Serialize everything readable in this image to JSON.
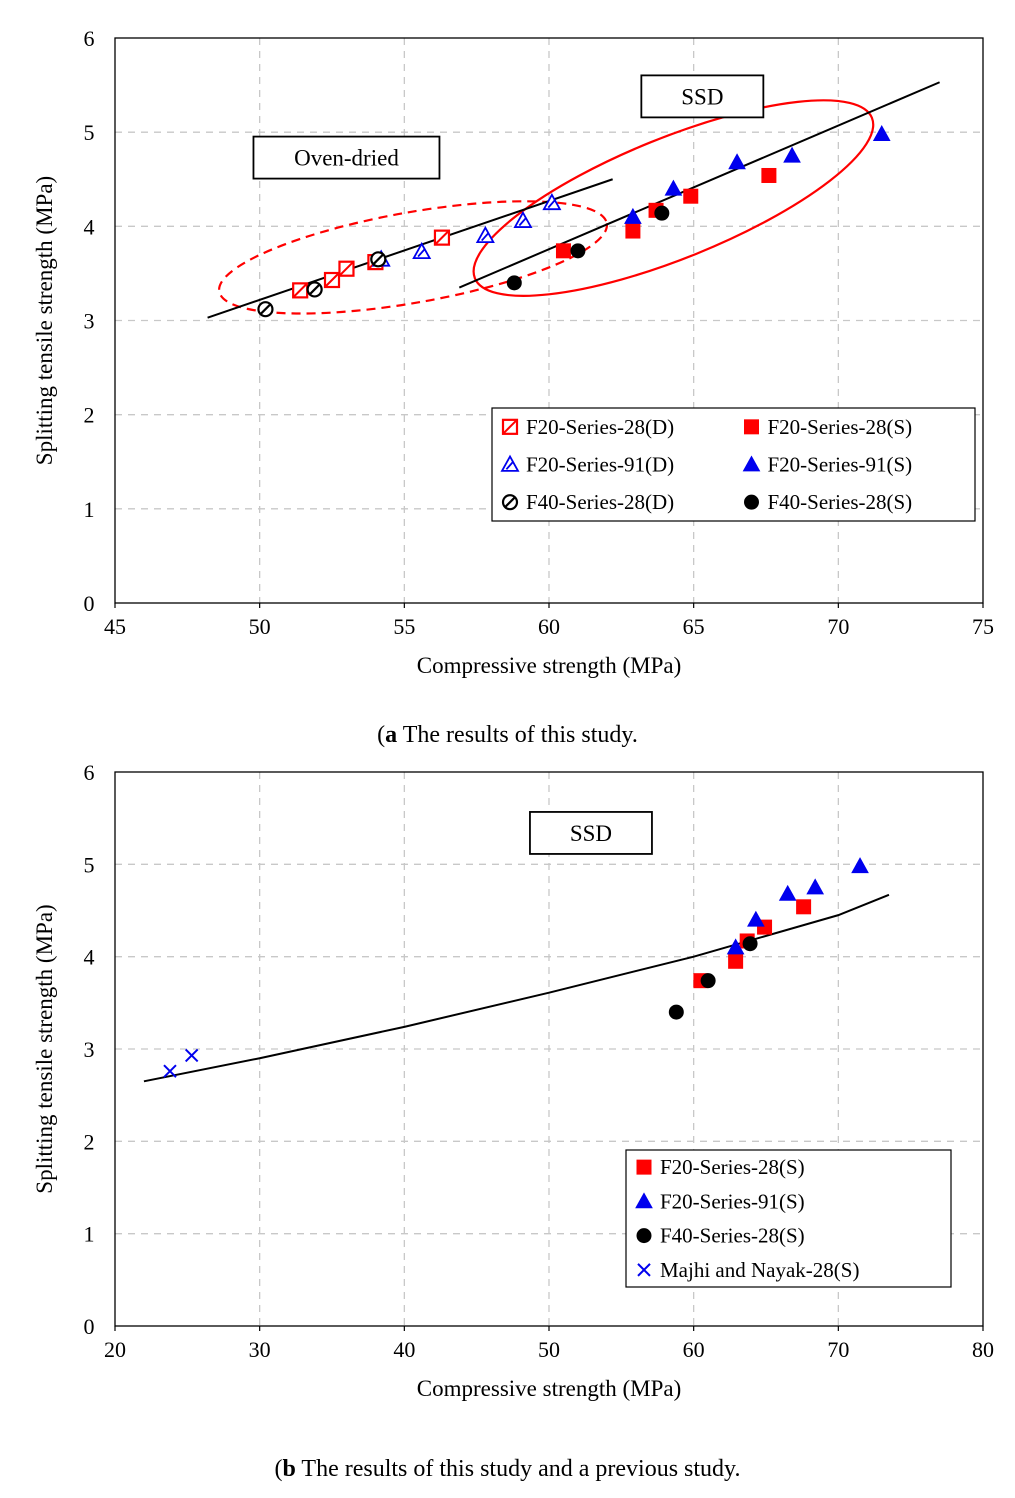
{
  "colors": {
    "red": "#ff0000",
    "blue": "#0000ee",
    "black": "#000000",
    "grid": "#c8c8c8"
  },
  "captions": [
    {
      "label": "a",
      "text": " The results of this study."
    },
    {
      "label": "b",
      "text": " The results of this study and a previous study."
    }
  ],
  "chart_data": [
    {
      "type": "scatter",
      "title": "",
      "xlabel": "Compressive strength (MPa)",
      "ylabel": "Splitting tensile strength (MPa)",
      "xlim": [
        45,
        75
      ],
      "ylim": [
        0,
        6
      ],
      "xticks": [
        45,
        50,
        55,
        60,
        65,
        70,
        75
      ],
      "yticks": [
        0,
        1,
        2,
        3,
        4,
        5,
        6
      ],
      "grid": true,
      "legend_position": "bottom-right",
      "series": [
        {
          "name": "F20-Series-28(D)",
          "marker": "square-open",
          "color": "red",
          "x": [
            51.4,
            52.5,
            53.0,
            54.0,
            56.3
          ],
          "y": [
            3.32,
            3.43,
            3.55,
            3.62,
            3.88
          ]
        },
        {
          "name": "F20-Series-91(D)",
          "marker": "triangle-open",
          "color": "blue",
          "x": [
            54.2,
            55.6,
            57.8,
            59.1,
            60.1
          ],
          "y": [
            3.65,
            3.73,
            3.9,
            4.06,
            4.25
          ]
        },
        {
          "name": "F40-Series-28(D)",
          "marker": "circle-open",
          "color": "black",
          "x": [
            50.2,
            51.9,
            54.1
          ],
          "y": [
            3.12,
            3.33,
            3.65
          ]
        },
        {
          "name": "F20-Series-28(S)",
          "marker": "square",
          "color": "red",
          "x": [
            60.5,
            62.9,
            63.7,
            64.9,
            67.6
          ],
          "y": [
            3.74,
            3.95,
            4.17,
            4.32,
            4.54
          ]
        },
        {
          "name": "F20-Series-91(S)",
          "marker": "triangle",
          "color": "blue",
          "x": [
            62.9,
            64.3,
            66.5,
            68.4,
            71.5
          ],
          "y": [
            4.1,
            4.4,
            4.68,
            4.75,
            4.98
          ]
        },
        {
          "name": "F40-Series-28(S)",
          "marker": "circle",
          "color": "black",
          "x": [
            58.8,
            61.0,
            63.9
          ],
          "y": [
            3.4,
            3.74,
            4.14
          ]
        }
      ],
      "fit_lines": [
        {
          "x": [
            48.2,
            62.2
          ],
          "y": [
            3.03,
            4.5
          ]
        },
        {
          "x": [
            56.9,
            73.5
          ],
          "y": [
            3.35,
            5.53
          ]
        }
      ],
      "annotations": [
        {
          "text": "Oven-dried",
          "x": 53.0,
          "y": 4.73
        },
        {
          "text": "SSD",
          "x": 65.3,
          "y": 5.38
        }
      ],
      "ellipses": [
        {
          "style": "dashed",
          "cx": 55.3,
          "cy": 3.67,
          "rx": 6.8,
          "ry": 0.48,
          "angle_deg": -10
        },
        {
          "style": "solid",
          "cx": 64.3,
          "cy": 4.3,
          "rx": 7.4,
          "ry": 0.64,
          "angle_deg": -22
        }
      ]
    },
    {
      "type": "scatter",
      "title": "",
      "xlabel": "Compressive strength (MPa)",
      "ylabel": "Splitting tensile strength (MPa)",
      "xlim": [
        20,
        80
      ],
      "ylim": [
        0,
        6
      ],
      "xticks": [
        20,
        30,
        40,
        50,
        60,
        70,
        80
      ],
      "yticks": [
        0,
        1,
        2,
        3,
        4,
        5,
        6
      ],
      "grid": true,
      "legend_position": "bottom-right",
      "series": [
        {
          "name": "F20-Series-28(S)",
          "marker": "square",
          "color": "red",
          "x": [
            60.5,
            62.9,
            63.7,
            64.9,
            67.6
          ],
          "y": [
            3.74,
            3.95,
            4.17,
            4.32,
            4.54
          ]
        },
        {
          "name": "F20-Series-91(S)",
          "marker": "triangle",
          "color": "blue",
          "x": [
            62.9,
            64.3,
            66.5,
            68.4,
            71.5
          ],
          "y": [
            4.1,
            4.4,
            4.68,
            4.75,
            4.98
          ]
        },
        {
          "name": "F40-Series-28(S)",
          "marker": "circle",
          "color": "black",
          "x": [
            58.8,
            61.0,
            63.9
          ],
          "y": [
            3.4,
            3.74,
            4.14
          ]
        },
        {
          "name": "Majhi and Nayak-28(S)",
          "marker": "x",
          "color": "blue",
          "x": [
            23.8,
            25.3
          ],
          "y": [
            2.76,
            2.93
          ]
        }
      ],
      "fit_curves": [
        {
          "x": [
            22,
            30,
            40,
            50,
            60,
            70,
            73.5
          ],
          "y": [
            2.65,
            2.9,
            3.24,
            3.61,
            4.0,
            4.45,
            4.67
          ]
        }
      ],
      "annotations": [
        {
          "text": "SSD",
          "x": 52.9,
          "y": 5.34
        }
      ]
    }
  ]
}
